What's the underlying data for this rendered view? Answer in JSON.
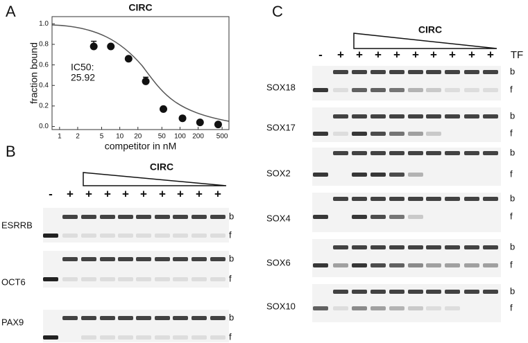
{
  "chart_data": {
    "type": "scatter",
    "panel_label": "A",
    "title": "CIRC",
    "x_label": "competitor in nM",
    "y_label": "fraction bound",
    "annotation": [
      "IC50:",
      "25.92"
    ],
    "x": [
      3.7,
      7.1,
      14,
      27,
      53,
      110,
      215,
      430
    ],
    "values": [
      0.78,
      0.78,
      0.66,
      0.44,
      0.17,
      0.08,
      0.04,
      0.02
    ],
    "errors": [
      0.05,
      0,
      0,
      0.04,
      0,
      0,
      0,
      0
    ],
    "color": "#111111",
    "xscale": "log",
    "xlim": [
      0.75,
      650
    ],
    "xticks": [
      1,
      2,
      5,
      10,
      20,
      50,
      100,
      200,
      500
    ],
    "ylim": [
      -0.03,
      1.07
    ],
    "yticks": [
      {
        "value": 0,
        "label": "0.0"
      },
      {
        "value": 0.2,
        "label": "0.2"
      },
      {
        "value": 0.4,
        "label": "0.4"
      },
      {
        "value": 0.6,
        "label": "0.6"
      },
      {
        "value": 0.8,
        "label": "0.8"
      },
      {
        "value": 1,
        "label": "1.0"
      }
    ]
  },
  "gel_panels": [
    {
      "label": "B",
      "title": "CIRC",
      "lanes": [
        "-",
        "+",
        "+",
        "+",
        "+",
        "+",
        "+",
        "+",
        "+",
        "+"
      ],
      "rows": [
        {
          "name": "ESRRB",
          "bound": "b",
          "free": "f"
        },
        {
          "name": "OCT6",
          "bound": "b",
          "free": "f"
        },
        {
          "name": "PAX9",
          "bound": "b",
          "free": "f"
        }
      ]
    },
    {
      "label": "C",
      "title": "CIRC",
      "lane_header": "TF",
      "lanes": [
        "-",
        "+",
        "+",
        "+",
        "+",
        "+",
        "+",
        "+",
        "+",
        "+"
      ],
      "rows": [
        {
          "name": "SOX18",
          "bound": "b",
          "free": "f"
        },
        {
          "name": "SOX17",
          "bound": "b",
          "free": "f"
        },
        {
          "name": "SOX2",
          "bound": "b",
          "free": "f"
        },
        {
          "name": "SOX4",
          "bound": "b",
          "free": "f"
        },
        {
          "name": "SOX6",
          "bound": "b",
          "free": "f"
        },
        {
          "name": "SOX10",
          "bound": "b",
          "free": "f"
        }
      ]
    }
  ]
}
